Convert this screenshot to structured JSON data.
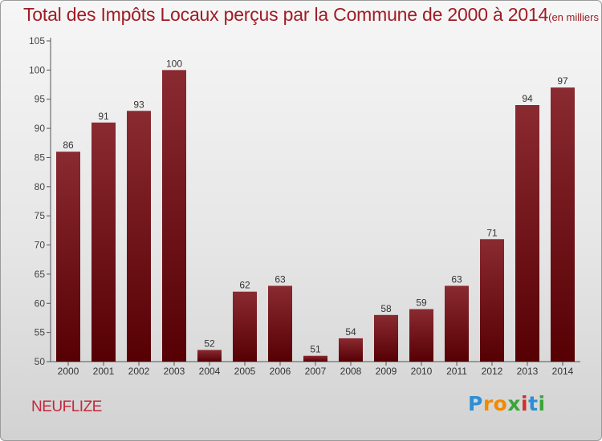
{
  "title": "Total des Impôts Locaux perçus par la Commune de 2000 à 2014",
  "title_unit": "(en milliers d'€)",
  "commune": "NEUFLIZE",
  "logo": {
    "letters": [
      "P",
      "r",
      "o",
      "x",
      "i",
      "t",
      "i"
    ]
  },
  "colors": {
    "bar_top": "#8a2a31",
    "bar_bottom": "#560004",
    "title": "#a01c24",
    "commune": "#c4283a"
  },
  "chart_data": {
    "type": "bar",
    "title": "Total des Impôts Locaux perçus par la Commune de 2000 à 2014",
    "categories": [
      "2000",
      "2001",
      "2002",
      "2003",
      "2004",
      "2005",
      "2006",
      "2007",
      "2008",
      "2009",
      "2010",
      "2011",
      "2012",
      "2013",
      "2014"
    ],
    "values": [
      86,
      91,
      93,
      100,
      52,
      62,
      63,
      51,
      54,
      58,
      59,
      63,
      71,
      94,
      97
    ],
    "ylim": [
      50,
      105
    ],
    "yticks": [
      50,
      55,
      60,
      65,
      70,
      75,
      80,
      85,
      90,
      95,
      100,
      105
    ],
    "grid": false
  }
}
